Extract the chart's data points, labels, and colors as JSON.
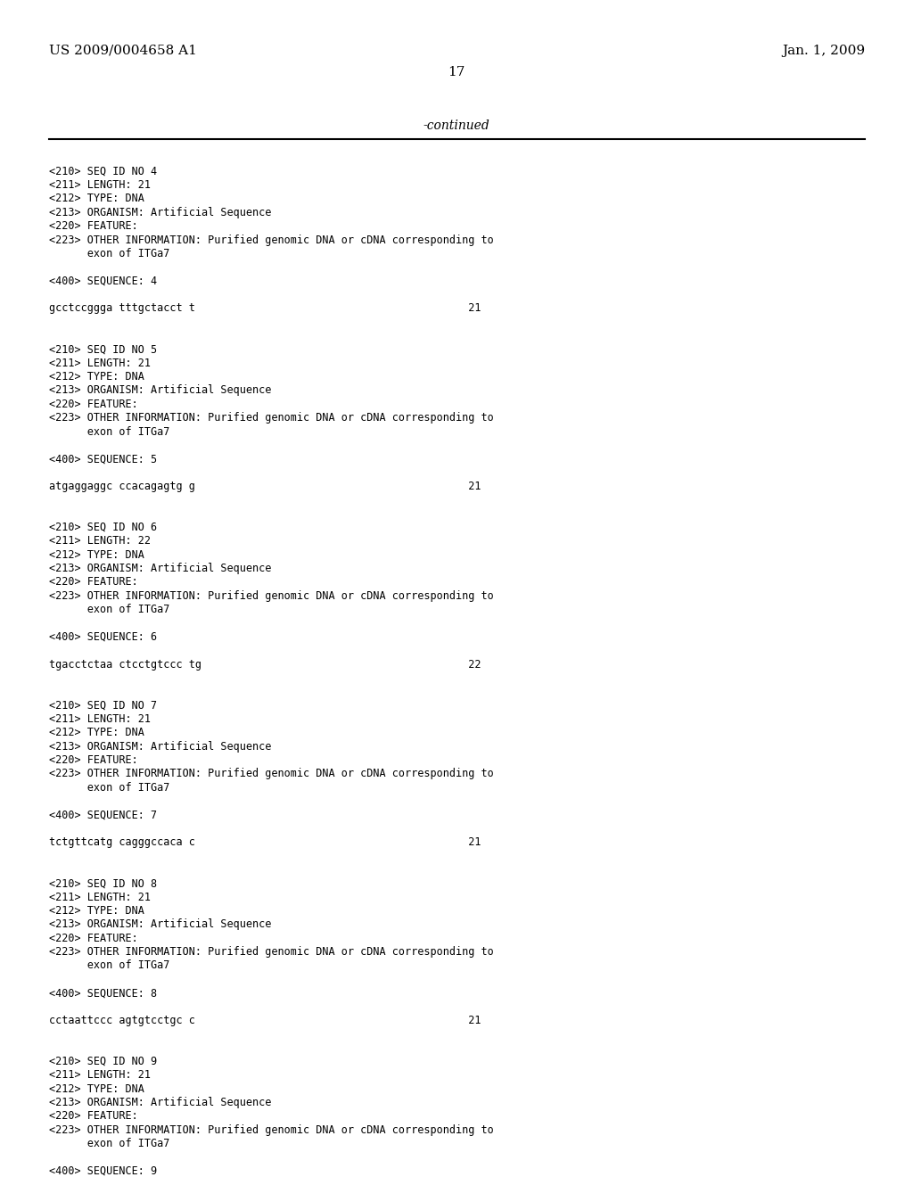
{
  "header_left": "US 2009/0004658 A1",
  "header_right": "Jan. 1, 2009",
  "page_number": "17",
  "continued_label": "-continued",
  "bg_color": "#ffffff",
  "text_color": "#000000",
  "monospace_lines": [
    "",
    "<210> SEQ ID NO 4",
    "<211> LENGTH: 21",
    "<212> TYPE: DNA",
    "<213> ORGANISM: Artificial Sequence",
    "<220> FEATURE:",
    "<223> OTHER INFORMATION: Purified genomic DNA or cDNA corresponding to",
    "      exon of ITGa7",
    "",
    "<400> SEQUENCE: 4",
    "",
    "gcctccggga tttgctacct t                                           21",
    "",
    "",
    "<210> SEQ ID NO 5",
    "<211> LENGTH: 21",
    "<212> TYPE: DNA",
    "<213> ORGANISM: Artificial Sequence",
    "<220> FEATURE:",
    "<223> OTHER INFORMATION: Purified genomic DNA or cDNA corresponding to",
    "      exon of ITGa7",
    "",
    "<400> SEQUENCE: 5",
    "",
    "atgaggaggc ccacagagtg g                                           21",
    "",
    "",
    "<210> SEQ ID NO 6",
    "<211> LENGTH: 22",
    "<212> TYPE: DNA",
    "<213> ORGANISM: Artificial Sequence",
    "<220> FEATURE:",
    "<223> OTHER INFORMATION: Purified genomic DNA or cDNA corresponding to",
    "      exon of ITGa7",
    "",
    "<400> SEQUENCE: 6",
    "",
    "tgacctctaa ctcctgtccc tg                                          22",
    "",
    "",
    "<210> SEQ ID NO 7",
    "<211> LENGTH: 21",
    "<212> TYPE: DNA",
    "<213> ORGANISM: Artificial Sequence",
    "<220> FEATURE:",
    "<223> OTHER INFORMATION: Purified genomic DNA or cDNA corresponding to",
    "      exon of ITGa7",
    "",
    "<400> SEQUENCE: 7",
    "",
    "tctgttcatg cagggccaca c                                           21",
    "",
    "",
    "<210> SEQ ID NO 8",
    "<211> LENGTH: 21",
    "<212> TYPE: DNA",
    "<213> ORGANISM: Artificial Sequence",
    "<220> FEATURE:",
    "<223> OTHER INFORMATION: Purified genomic DNA or cDNA corresponding to",
    "      exon of ITGa7",
    "",
    "<400> SEQUENCE: 8",
    "",
    "cctaattccc agtgtcctgc c                                           21",
    "",
    "",
    "<210> SEQ ID NO 9",
    "<211> LENGTH: 21",
    "<212> TYPE: DNA",
    "<213> ORGANISM: Artificial Sequence",
    "<220> FEATURE:",
    "<223> OTHER INFORMATION: Purified genomic DNA or cDNA corresponding to",
    "      exon of ITGa7",
    "",
    "<400> SEQUENCE: 9"
  ]
}
